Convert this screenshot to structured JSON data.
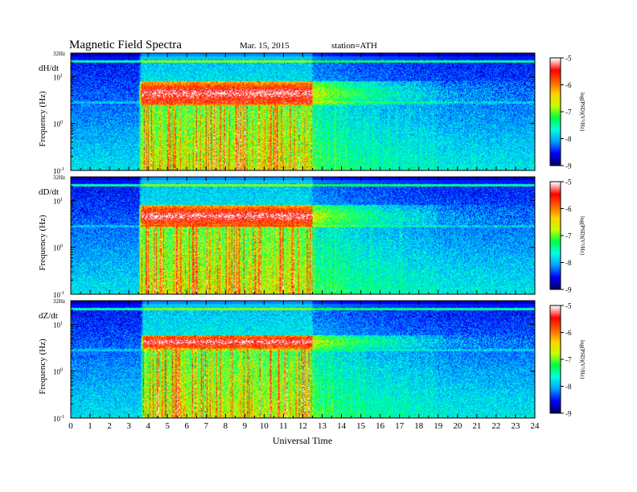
{
  "header": {
    "title": "Magnetic  Field  Spectra",
    "date": "Mar. 15, 2015",
    "station": "station=ATH"
  },
  "chart_data": {
    "type": "heatmap",
    "x_axis": {
      "label": "Universal  Time",
      "ticks": [
        "0",
        "1",
        "2",
        "3",
        "4",
        "5",
        "6",
        "7",
        "8",
        "9",
        "10",
        "11",
        "12",
        "13",
        "14",
        "15",
        "16",
        "17",
        "18",
        "19",
        "20",
        "21",
        "22",
        "23",
        "24"
      ],
      "range": [
        0,
        24
      ]
    },
    "y_axis": {
      "label": "Frequency  (Hz)",
      "scale": "log",
      "range": [
        0.1,
        32
      ],
      "top_label": "32Hz",
      "decade_labels": [
        {
          "base": "10",
          "exp": "1",
          "value": 10
        },
        {
          "base": "10",
          "exp": "0",
          "value": 1
        },
        {
          "base": "10",
          "exp": "-1",
          "value": 0.1
        }
      ]
    },
    "colorbar": {
      "label": "log(PSD)(V²/Hz)",
      "range": [
        -9,
        -5
      ],
      "ticks": [
        "-5",
        "-6",
        "-7",
        "-8",
        "-9"
      ],
      "colors": [
        "#000066",
        "#0000ff",
        "#00a0ff",
        "#00ffe0",
        "#00ff40",
        "#c8ff00",
        "#ffd000",
        "#ff6000",
        "#ff0000",
        "#ffffff"
      ]
    },
    "panels": [
      {
        "component": "dH/dt",
        "active_start_h": 3.5,
        "active_end_h": 12.5,
        "pc_band_hz": [
          2.5,
          8
        ]
      },
      {
        "component": "dD/dt",
        "active_start_h": 3.5,
        "active_end_h": 12.5,
        "pc_band_hz": [
          2.8,
          8
        ]
      },
      {
        "component": "dZ/dt",
        "active_start_h": 3.6,
        "active_end_h": 12.5,
        "pc_band_hz": [
          3,
          6
        ]
      }
    ]
  }
}
